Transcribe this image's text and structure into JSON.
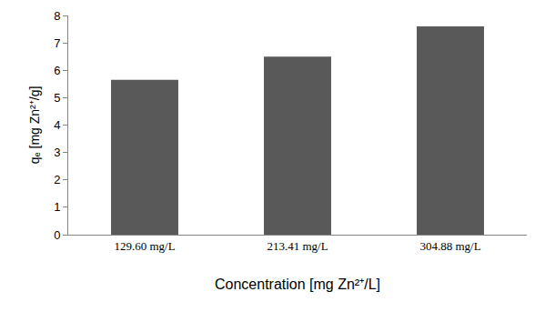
{
  "chart_data": {
    "type": "bar",
    "categories": [
      "129.60 mg/L",
      "213.41 mg/L",
      "304.88 mg/L"
    ],
    "values": [
      5.65,
      6.5,
      7.6
    ],
    "color": "#595959",
    "x_label": "Concentration [mg Zn²⁺/L]",
    "y_label": "qₑ [mg Zn²⁺/g]",
    "ylim": [
      0,
      8
    ],
    "yticks": [
      0,
      1,
      2,
      3,
      4,
      5,
      6,
      7,
      8
    ],
    "grid": false
  }
}
